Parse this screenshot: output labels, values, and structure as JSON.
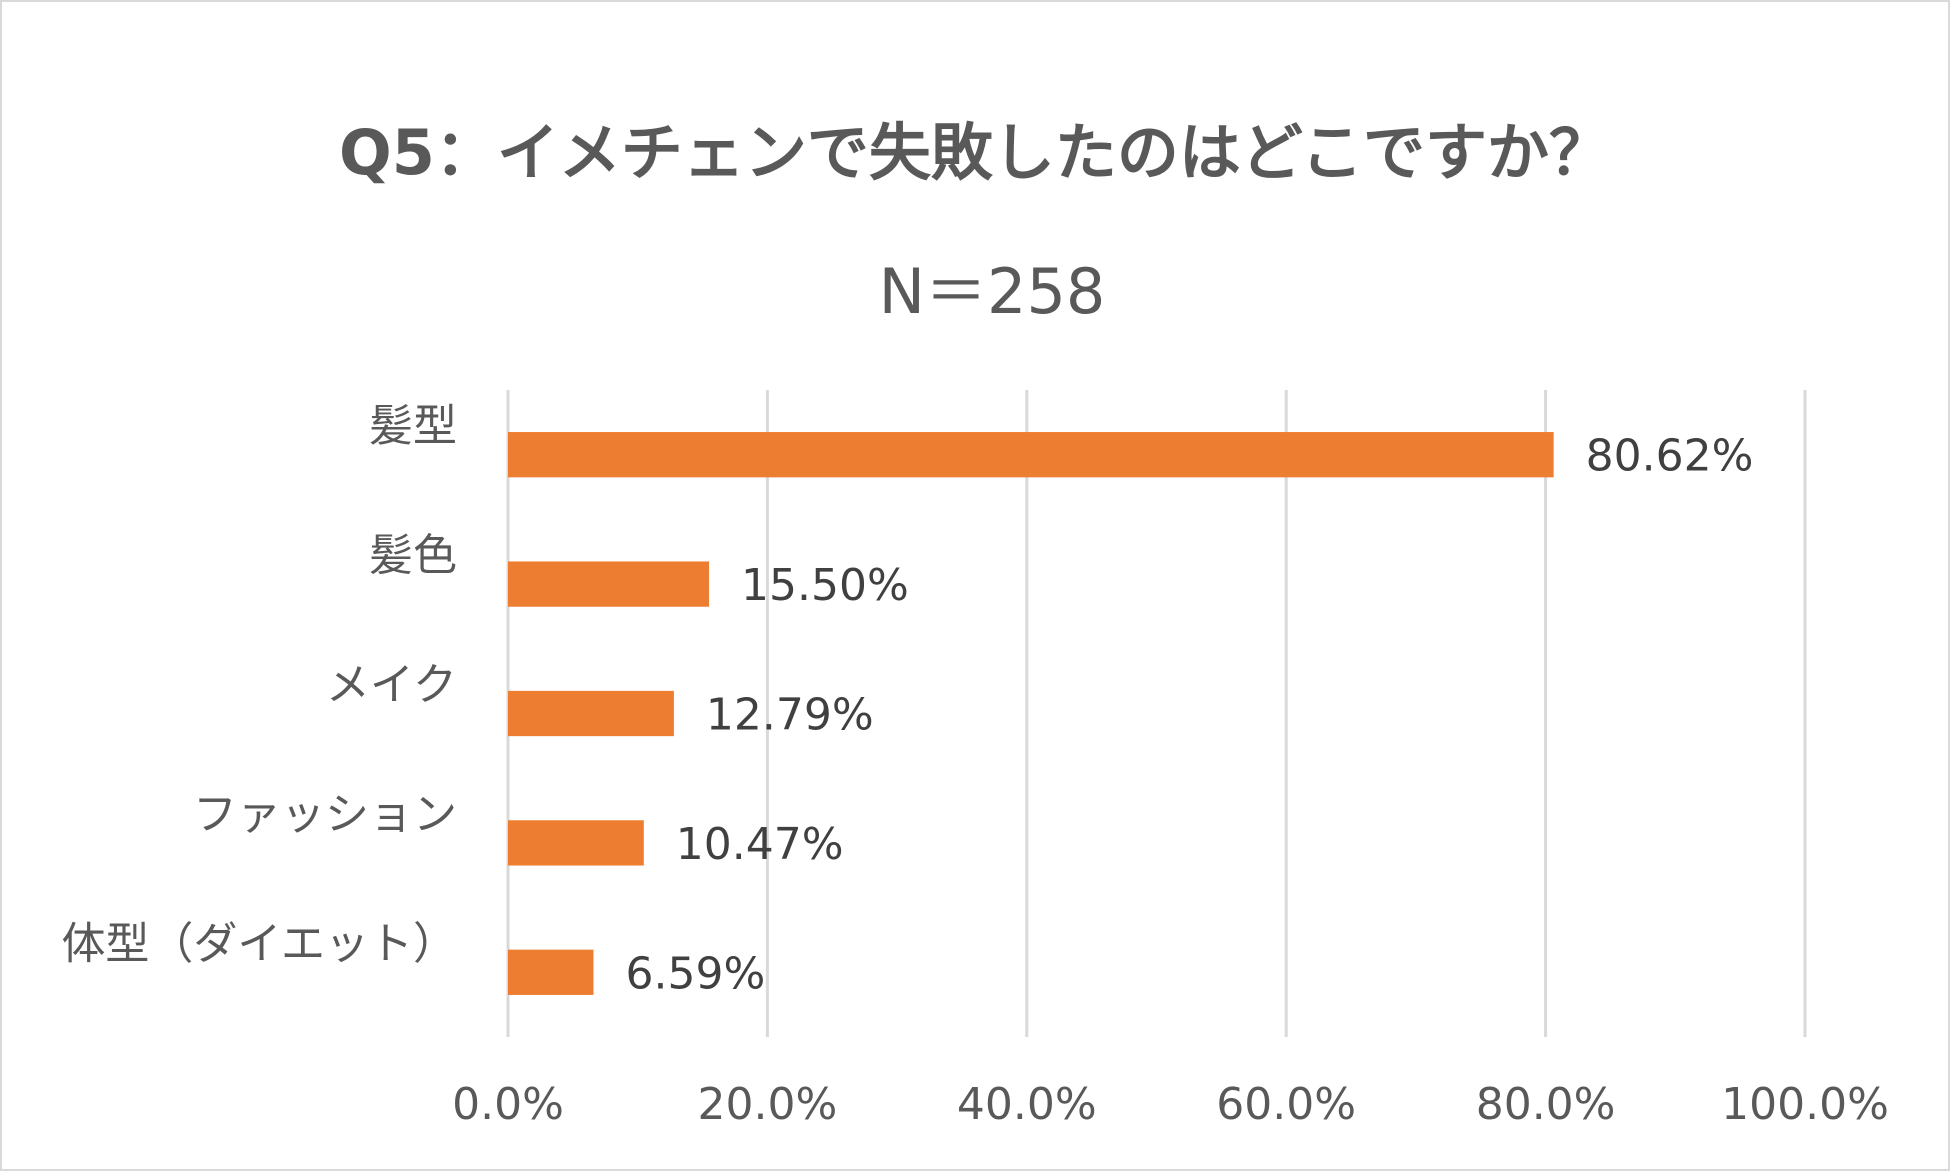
{
  "chart_data": {
    "type": "bar",
    "orientation": "horizontal",
    "title": "Q5：イメチェンで失敗したのはどこですか？",
    "subtitle": "N＝258",
    "categories": [
      "髪型",
      "髪色",
      "メイク",
      "ファッション",
      "体型（ダイエット）"
    ],
    "values": [
      80.62,
      15.5,
      12.79,
      10.47,
      6.59
    ],
    "data_labels": [
      "80.62%",
      "15.50%",
      "12.79%",
      "10.47%",
      "6.59%"
    ],
    "xlim": [
      0,
      100
    ],
    "x_ticks": [
      0,
      20,
      40,
      60,
      80,
      100
    ],
    "x_tick_labels": [
      "0.0%",
      "20.0%",
      "40.0%",
      "60.0%",
      "80.0%",
      "100.0%"
    ],
    "xlabel": "",
    "ylabel": "",
    "grid": true,
    "legend": "none",
    "bar_color": "#ED7D31",
    "text_color": "#595959",
    "grid_color": "#D9D9D9"
  }
}
